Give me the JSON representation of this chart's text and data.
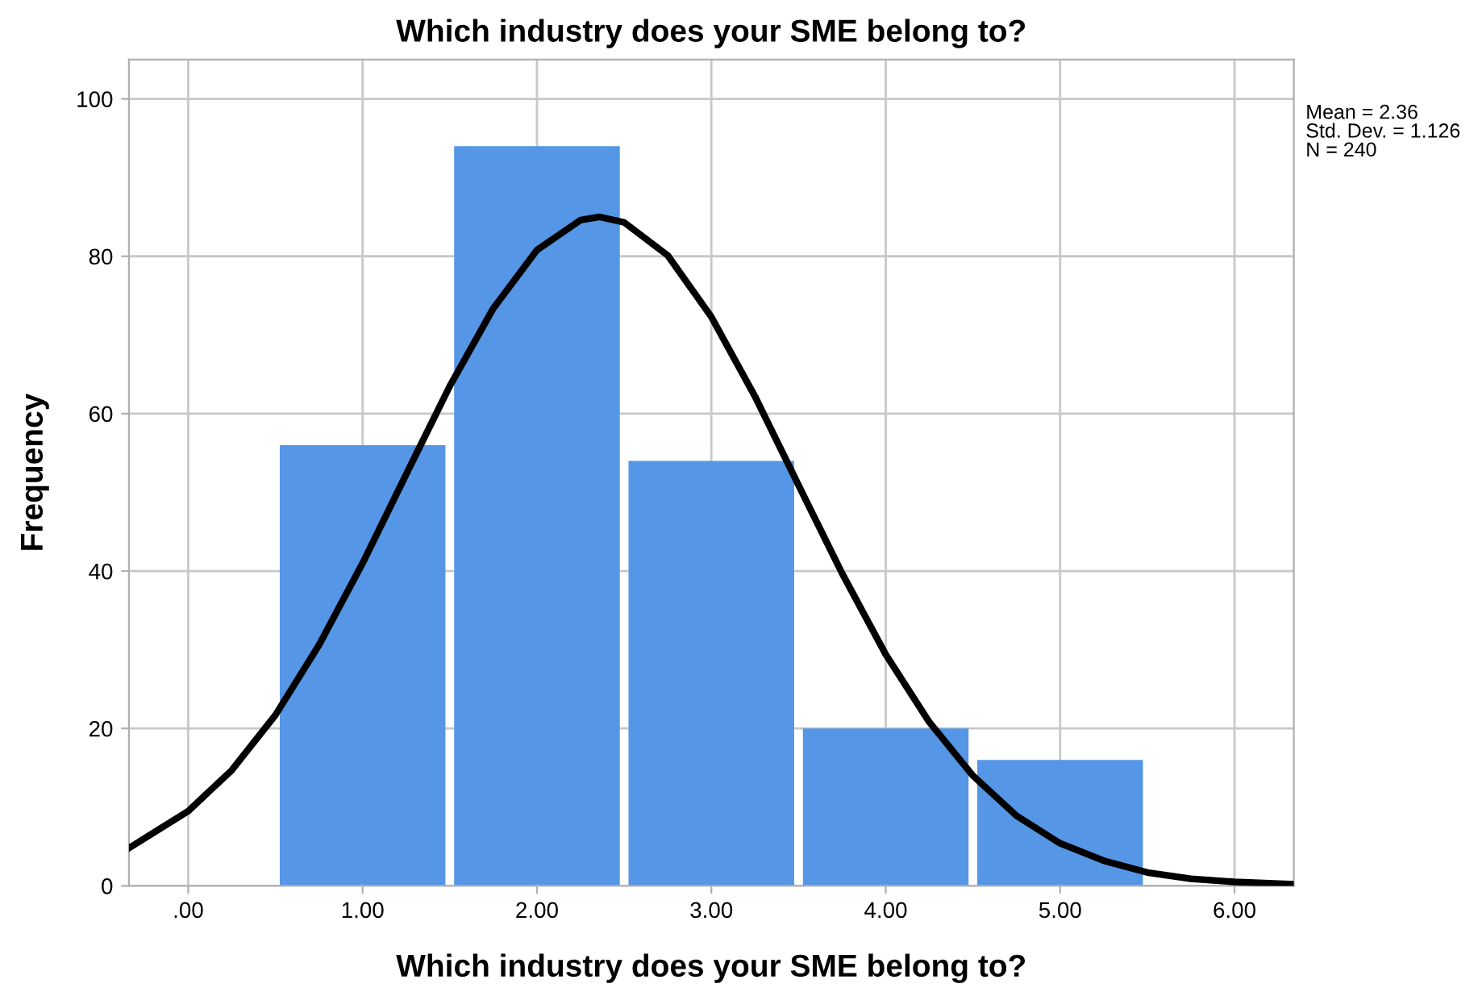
{
  "chart_data": {
    "type": "histogram",
    "title": "Which industry does your SME belong to?",
    "xlabel": "Which industry does your SME belong to?",
    "ylabel": "Frequency",
    "bins": [
      0.5,
      1.5,
      2.5,
      3.5,
      4.5,
      5.5
    ],
    "values": [
      56,
      94,
      54,
      20,
      16
    ],
    "color": "#5596e6",
    "series": [
      {
        "type": "line",
        "color": "#000000",
        "x": [
          -0.34,
          0,
          0.25,
          0.5,
          0.75,
          1,
          1.25,
          1.5,
          1.75,
          2,
          2.25,
          2.36,
          2.5,
          2.75,
          3,
          3.25,
          3.5,
          3.75,
          4,
          4.25,
          4.5,
          4.75,
          5,
          5.25,
          5.5,
          5.75,
          6,
          6.34
        ],
        "values": [
          4.8,
          9.5,
          14.7,
          21.7,
          30.6,
          41.0,
          52.3,
          63.5,
          73.4,
          80.8,
          84.6,
          85,
          84.3,
          80.1,
          72.3,
          62.2,
          50.9,
          39.7,
          29.4,
          20.8,
          14.0,
          8.9,
          5.4,
          3.2,
          1.7,
          0.9,
          0.5,
          0.2
        ]
      }
    ],
    "xlim": [
      -0.34,
      6.34
    ],
    "ylim": [
      0,
      105
    ],
    "xticks": [
      {
        "value": 0,
        "label": ".00"
      },
      {
        "value": 1,
        "label": "1.00"
      },
      {
        "value": 2,
        "label": "2.00"
      },
      {
        "value": 3,
        "label": "3.00"
      },
      {
        "value": 4,
        "label": "4.00"
      },
      {
        "value": 5,
        "label": "5.00"
      },
      {
        "value": 6,
        "label": "6.00"
      }
    ],
    "yticks": [
      0,
      20,
      40,
      60,
      80,
      100
    ],
    "grid": true,
    "annotations": [
      "Mean = 2.36\nStd. Dev. = 1.126\nN = 240"
    ]
  }
}
